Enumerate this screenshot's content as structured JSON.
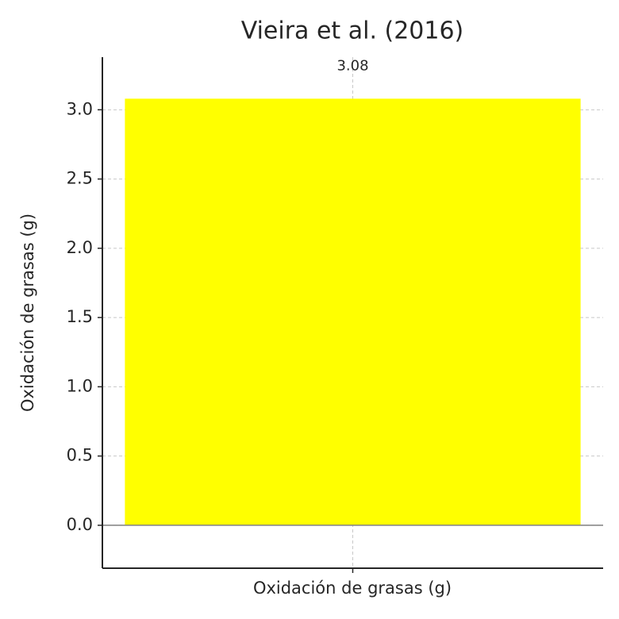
{
  "chart_data": {
    "type": "bar",
    "title": "Vieira et al. (2016)",
    "x_label": "Oxidación de grasas (g)",
    "y_label": "Oxidación de grasas (g)",
    "categories": [
      null
    ],
    "values": [
      3.08
    ],
    "color": "#ffff00",
    "ylim": [
      -0.31,
      3.38
    ],
    "yticks": [
      {
        "value": 0,
        "label": "0.0"
      },
      0.5,
      {
        "value": 1,
        "label": "1.0"
      },
      1.5,
      {
        "value": 2,
        "label": "2.0"
      },
      2.5,
      {
        "value": 3,
        "label": "3.0"
      }
    ],
    "grid": true
  }
}
